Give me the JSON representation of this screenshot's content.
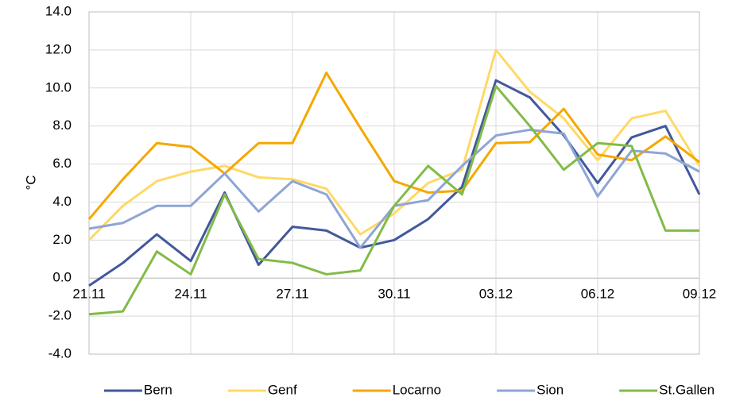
{
  "chart_data": {
    "type": "line",
    "y_label": "°C",
    "categories": [
      "21.11",
      null,
      null,
      "24.11",
      null,
      null,
      "27.11",
      null,
      null,
      "30.11",
      null,
      null,
      "03.12",
      null,
      null,
      "06.12",
      null,
      null,
      "09.12"
    ],
    "series": [
      {
        "name": "Bern",
        "color": "#43589c",
        "values": [
          -0.4,
          0.8,
          2.3,
          0.9,
          4.5,
          0.7,
          2.7,
          2.5,
          1.6,
          2.0,
          3.1,
          4.8,
          10.4,
          9.5,
          7.5,
          5.0,
          7.4,
          8.0,
          4.4
        ]
      },
      {
        "name": "Genf",
        "color": "#ffd966",
        "values": [
          2.0,
          3.8,
          5.1,
          5.6,
          5.9,
          5.3,
          5.2,
          4.7,
          2.3,
          3.4,
          5.0,
          5.7,
          12.0,
          9.8,
          8.4,
          6.2,
          8.4,
          8.8,
          5.9
        ]
      },
      {
        "name": "Locarno",
        "color": "#f5a800",
        "values": [
          3.1,
          5.2,
          7.1,
          6.9,
          5.5,
          7.1,
          7.1,
          10.8,
          7.9,
          5.1,
          4.5,
          4.6,
          7.1,
          7.15,
          8.9,
          6.5,
          6.2,
          7.45,
          6.1
        ]
      },
      {
        "name": "Sion",
        "color": "#8ea5d6",
        "values": [
          2.6,
          2.9,
          3.8,
          3.8,
          5.5,
          3.5,
          5.1,
          4.4,
          1.6,
          3.8,
          4.1,
          5.9,
          7.5,
          7.8,
          7.6,
          4.3,
          6.7,
          6.55,
          5.6
        ]
      },
      {
        "name": "St.Gallen",
        "color": "#82bb48",
        "values": [
          -1.9,
          -1.75,
          1.4,
          0.2,
          4.4,
          1.0,
          0.8,
          0.2,
          0.4,
          3.8,
          5.9,
          4.4,
          10.1,
          8.0,
          5.7,
          7.1,
          6.95,
          2.5,
          2.5
        ]
      }
    ],
    "ylim": [
      -4,
      14
    ],
    "yticks": [
      {
        "value": -4,
        "label": "-4.0"
      },
      {
        "value": -2,
        "label": "-2.0"
      },
      {
        "value": 0,
        "label": "0.0"
      },
      {
        "value": 2,
        "label": "2.0"
      },
      {
        "value": 4,
        "label": "4.0"
      },
      {
        "value": 6,
        "label": "6.0"
      },
      {
        "value": 8,
        "label": "8.0"
      },
      {
        "value": 10,
        "label": "10.0"
      },
      {
        "value": 12,
        "label": "12.0"
      },
      {
        "value": 14,
        "label": "14.0"
      }
    ],
    "grid": true,
    "legend": "bottom"
  }
}
